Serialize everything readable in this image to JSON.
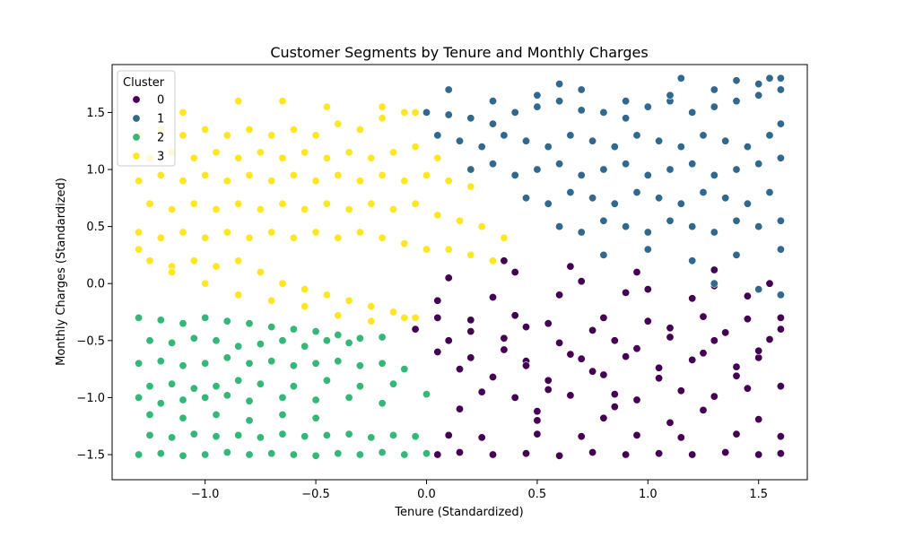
{
  "chart_data": {
    "type": "scatter",
    "title": "Customer Segments by Tenure and Monthly Charges",
    "xlabel": "Tenure (Standardized)",
    "ylabel": "Monthly Charges (Standardized)",
    "xlim": [
      -1.42,
      1.72
    ],
    "ylim": [
      -1.72,
      1.92
    ],
    "x_ticks": [
      -1.0,
      -0.5,
      0.0,
      0.5,
      1.0,
      1.5
    ],
    "x_tick_labels": [
      "−1.0",
      "−0.5",
      "0.0",
      "0.5",
      "1.0",
      "1.5"
    ],
    "y_ticks": [
      -1.5,
      -1.0,
      -0.5,
      0.0,
      0.5,
      1.0,
      1.5
    ],
    "y_tick_labels": [
      "−1.5",
      "−1.0",
      "−0.5",
      "0.0",
      "0.5",
      "1.0",
      "1.5"
    ],
    "grid": false,
    "legend": {
      "title": "Cluster",
      "placement": "top-left",
      "entries": [
        {
          "label": "0",
          "color": "#440154"
        },
        {
          "label": "1",
          "color": "#31688e"
        },
        {
          "label": "2",
          "color": "#35b779"
        },
        {
          "label": "3",
          "color": "#fde725"
        }
      ]
    },
    "series": [
      {
        "name": "0",
        "color": "#440154",
        "x": [
          0.05,
          0.15,
          0.3,
          0.45,
          0.6,
          0.75,
          0.9,
          1.05,
          1.2,
          1.35,
          1.5,
          1.6,
          -0.1,
          0.1,
          0.25,
          0.5,
          0.7,
          0.95,
          1.15,
          1.4,
          1.6,
          0.05,
          0.2,
          0.4,
          0.55,
          0.8,
          1.0,
          1.25,
          1.45,
          1.6,
          0.1,
          0.35,
          0.6,
          0.85,
          1.1,
          1.3,
          1.55,
          0.2,
          0.45,
          0.7,
          0.9,
          1.2,
          1.5,
          0.3,
          0.55,
          0.8,
          1.05,
          1.4,
          0.4,
          0.65,
          0.95,
          1.3,
          0.15,
          0.5,
          0.85,
          1.25,
          1.6,
          0.05,
          0.3,
          0.6,
          0.9,
          1.2,
          1.45,
          -0.05,
          0.2,
          0.45,
          0.75,
          1.1,
          1.35,
          1.6,
          0.1,
          0.4,
          0.7,
          1.0,
          1.3,
          1.55,
          0.05,
          0.35,
          0.65,
          0.95,
          1.25,
          1.5,
          0.15,
          0.45,
          0.75,
          1.05,
          1.4,
          0.25,
          0.55,
          0.85,
          1.15,
          1.45,
          0.35,
          0.65,
          0.95,
          1.3,
          0.5,
          0.8,
          1.1,
          1.5
        ],
        "y": [
          -1.5,
          -1.48,
          -1.5,
          -1.49,
          -1.51,
          -1.48,
          -1.5,
          -1.49,
          -1.5,
          -1.48,
          -1.5,
          -1.49,
          -1.5,
          -1.33,
          -1.35,
          -1.32,
          -1.34,
          -1.33,
          -1.35,
          -1.32,
          -1.34,
          -0.3,
          -0.32,
          -0.28,
          -0.35,
          -0.3,
          -0.33,
          -0.29,
          -0.31,
          -0.3,
          -0.5,
          -0.48,
          -0.52,
          -0.5,
          -0.47,
          -0.5,
          -0.49,
          -0.65,
          -0.68,
          -0.66,
          -0.64,
          -0.67,
          -0.65,
          -0.82,
          -0.85,
          -0.8,
          -0.83,
          -0.81,
          -1.0,
          -0.98,
          -1.02,
          -0.99,
          -1.1,
          -1.12,
          -1.08,
          -1.11,
          -0.9,
          -0.15,
          -0.12,
          -0.1,
          -0.08,
          -0.13,
          -0.11,
          -0.4,
          -0.42,
          -0.38,
          -0.41,
          -0.39,
          -0.43,
          -0.4,
          0.05,
          0.1,
          0.02,
          -0.05,
          -0.02,
          0.0,
          -0.6,
          -0.58,
          -0.62,
          -0.57,
          -0.61,
          -0.59,
          -0.75,
          -0.72,
          -0.77,
          -0.74,
          -0.73,
          -0.95,
          -0.93,
          -0.97,
          -0.94,
          -0.92,
          0.2,
          0.15,
          0.1,
          0.12,
          -1.2,
          -1.18,
          -1.22,
          -1.19
        ]
      },
      {
        "name": "1",
        "color": "#31688e",
        "x": [
          0.0,
          0.1,
          0.2,
          0.3,
          0.4,
          0.5,
          0.6,
          0.7,
          0.8,
          0.9,
          1.0,
          1.1,
          1.2,
          1.3,
          1.4,
          1.5,
          1.6,
          0.05,
          0.15,
          0.25,
          0.35,
          0.45,
          0.55,
          0.65,
          0.75,
          0.85,
          0.95,
          1.05,
          1.15,
          1.25,
          1.35,
          1.45,
          1.55,
          1.6,
          0.2,
          0.3,
          0.4,
          0.5,
          0.6,
          0.7,
          0.8,
          0.9,
          1.0,
          1.1,
          1.2,
          1.3,
          1.4,
          1.5,
          1.6,
          0.45,
          0.55,
          0.65,
          0.75,
          0.85,
          0.95,
          1.05,
          1.15,
          1.25,
          1.35,
          1.45,
          1.55,
          0.6,
          0.7,
          0.8,
          0.9,
          1.0,
          1.1,
          1.2,
          1.3,
          1.4,
          1.5,
          1.6,
          0.1,
          0.3,
          0.5,
          0.7,
          0.9,
          1.1,
          1.3,
          1.5,
          1.6,
          0.8,
          1.0,
          1.2,
          1.4,
          1.6,
          1.3,
          1.5,
          1.6,
          0.6,
          1.15,
          1.4,
          1.55
        ],
        "y": [
          1.5,
          1.48,
          1.45,
          1.4,
          1.5,
          1.55,
          1.6,
          1.52,
          1.5,
          1.45,
          1.55,
          1.6,
          1.5,
          1.55,
          1.6,
          1.65,
          1.7,
          1.3,
          1.25,
          1.2,
          1.3,
          1.25,
          1.2,
          1.3,
          1.25,
          1.2,
          1.3,
          1.25,
          1.2,
          1.3,
          1.25,
          1.2,
          1.3,
          1.4,
          1.0,
          1.05,
          0.95,
          1.0,
          1.05,
          0.95,
          1.0,
          1.05,
          0.95,
          1.0,
          1.05,
          0.95,
          1.0,
          1.05,
          1.1,
          0.75,
          0.7,
          0.8,
          0.75,
          0.7,
          0.8,
          0.75,
          0.7,
          0.8,
          0.75,
          0.7,
          0.8,
          0.5,
          0.45,
          0.55,
          0.5,
          0.45,
          0.55,
          0.5,
          0.45,
          0.55,
          0.5,
          0.55,
          1.7,
          1.6,
          1.65,
          1.7,
          1.6,
          1.65,
          1.7,
          1.75,
          1.8,
          0.25,
          0.3,
          0.2,
          0.25,
          0.3,
          0.0,
          -0.05,
          -0.1,
          1.75,
          1.8,
          1.78,
          1.8
        ]
      },
      {
        "name": "2",
        "color": "#35b779",
        "x": [
          -1.3,
          -1.2,
          -1.1,
          -1.0,
          -0.9,
          -0.8,
          -0.7,
          -0.6,
          -0.5,
          -0.4,
          -0.3,
          -0.2,
          -0.1,
          0.0,
          -1.25,
          -1.15,
          -1.05,
          -0.95,
          -0.85,
          -0.75,
          -0.65,
          -0.55,
          -0.45,
          -0.35,
          -0.25,
          -0.15,
          -0.05,
          -1.3,
          -1.2,
          -1.1,
          -1.0,
          -0.9,
          -0.8,
          -0.7,
          -0.6,
          -0.5,
          -0.4,
          -0.3,
          -0.2,
          -1.25,
          -1.15,
          -1.05,
          -0.95,
          -0.85,
          -0.75,
          -0.65,
          -0.55,
          -0.45,
          -0.35,
          -1.3,
          -1.2,
          -1.1,
          -1.0,
          -0.9,
          -0.8,
          -0.7,
          -0.6,
          -0.5,
          -0.4,
          -0.3,
          -0.2,
          -0.1,
          -1.25,
          -1.15,
          -1.05,
          -0.95,
          -0.85,
          -0.75,
          -0.6,
          -0.45,
          -0.3,
          -0.15,
          0.0,
          -1.3,
          -1.2,
          -1.1,
          -1.0,
          -0.9,
          -0.8,
          -0.65,
          -0.5,
          -0.35,
          -0.2,
          -1.25,
          -1.1,
          -0.95,
          -0.8,
          -0.65,
          -0.5
        ],
        "y": [
          -1.5,
          -1.49,
          -1.51,
          -1.5,
          -1.48,
          -1.5,
          -1.49,
          -1.5,
          -1.51,
          -1.49,
          -1.5,
          -1.48,
          -1.5,
          -1.49,
          -1.33,
          -1.35,
          -1.32,
          -1.34,
          -1.33,
          -1.35,
          -1.32,
          -1.34,
          -1.33,
          -1.32,
          -1.35,
          -1.33,
          -1.34,
          -0.3,
          -0.32,
          -0.35,
          -0.3,
          -0.33,
          -0.35,
          -0.38,
          -0.4,
          -0.42,
          -0.45,
          -0.48,
          -0.47,
          -0.5,
          -0.52,
          -0.48,
          -0.5,
          -0.55,
          -0.53,
          -0.5,
          -0.55,
          -0.5,
          -0.52,
          -0.7,
          -0.68,
          -0.72,
          -0.7,
          -0.65,
          -0.7,
          -0.68,
          -0.72,
          -0.7,
          -0.68,
          -0.72,
          -0.7,
          -0.75,
          -0.9,
          -0.88,
          -0.92,
          -0.9,
          -0.85,
          -0.88,
          -0.9,
          -0.85,
          -0.9,
          -0.88,
          -0.97,
          -1.0,
          -1.05,
          -1.02,
          -1.0,
          -0.98,
          -1.03,
          -1.0,
          -1.02,
          -1.0,
          -1.05,
          -1.15,
          -1.18,
          -1.15,
          -1.2,
          -1.15,
          -1.18
        ]
      },
      {
        "name": "3",
        "color": "#fde725",
        "x": [
          -1.3,
          -1.2,
          -1.1,
          -1.0,
          -0.9,
          -0.8,
          -0.7,
          -0.6,
          -0.5,
          -0.4,
          -0.3,
          -0.2,
          -0.1,
          -1.25,
          -1.15,
          -1.05,
          -0.95,
          -0.85,
          -0.75,
          -0.65,
          -0.55,
          -0.45,
          -0.35,
          -0.25,
          -0.15,
          -0.05,
          0.05,
          -1.3,
          -1.2,
          -1.1,
          -1.0,
          -0.9,
          -0.8,
          -0.7,
          -0.6,
          -0.5,
          -0.4,
          -0.3,
          -0.2,
          -0.1,
          0.0,
          0.1,
          0.2,
          -1.25,
          -1.15,
          -1.05,
          -0.95,
          -0.85,
          -0.75,
          -0.65,
          -0.55,
          -0.45,
          -0.35,
          -0.25,
          -0.15,
          -0.05,
          0.05,
          0.15,
          0.25,
          0.35,
          -1.3,
          -1.2,
          -1.1,
          -1.0,
          -0.9,
          -0.8,
          -0.7,
          -0.6,
          -0.5,
          -0.4,
          -0.3,
          -0.2,
          -0.1,
          0.0,
          0.1,
          0.2,
          0.3,
          -1.25,
          -1.15,
          -1.05,
          -0.95,
          -0.85,
          -0.75,
          -0.65,
          -0.55,
          -0.45,
          -0.35,
          -0.25,
          -0.15,
          -0.05,
          -1.3,
          -1.15,
          -1.0,
          -0.85,
          -0.7,
          -0.55,
          -0.4,
          -0.25,
          -0.1,
          -1.1,
          -0.85,
          -0.65,
          -0.45,
          -0.2,
          -0.05
        ],
        "y": [
          1.3,
          1.35,
          1.3,
          1.35,
          1.3,
          1.35,
          1.3,
          1.35,
          1.3,
          1.4,
          1.35,
          1.45,
          1.5,
          1.1,
          1.15,
          1.1,
          1.15,
          1.1,
          1.15,
          1.1,
          1.15,
          1.1,
          1.15,
          1.1,
          1.15,
          1.2,
          1.1,
          0.9,
          0.95,
          0.9,
          0.95,
          0.9,
          0.95,
          0.9,
          0.95,
          0.9,
          0.95,
          0.9,
          0.95,
          0.9,
          0.95,
          0.9,
          0.85,
          0.7,
          0.65,
          0.7,
          0.65,
          0.7,
          0.65,
          0.7,
          0.65,
          0.7,
          0.65,
          0.7,
          0.65,
          0.7,
          0.6,
          0.55,
          0.5,
          0.4,
          0.45,
          0.4,
          0.45,
          0.4,
          0.45,
          0.4,
          0.45,
          0.4,
          0.45,
          0.4,
          0.45,
          0.4,
          0.35,
          0.3,
          0.3,
          0.25,
          0.2,
          0.2,
          0.15,
          0.2,
          0.15,
          0.2,
          0.1,
          0.0,
          -0.05,
          -0.1,
          -0.15,
          -0.2,
          -0.25,
          -0.3,
          0.3,
          0.1,
          0.0,
          -0.1,
          -0.15,
          -0.2,
          -0.28,
          -0.33,
          -0.3,
          1.5,
          1.6,
          1.6,
          1.55,
          1.55,
          1.5
        ]
      }
    ]
  }
}
